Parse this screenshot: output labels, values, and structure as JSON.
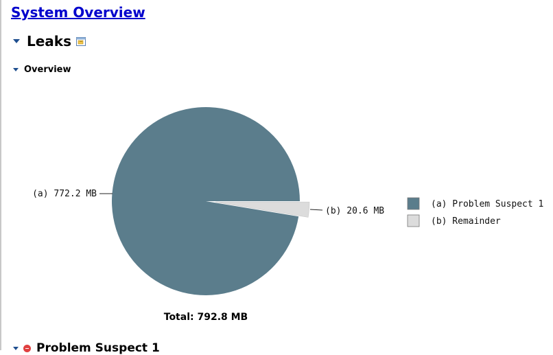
{
  "page": {
    "title": "System Overview"
  },
  "sections": {
    "leaks_label": "Leaks",
    "overview_label": "Overview",
    "next_label": "Problem Suspect 1"
  },
  "icons": {
    "section_toggle": "chevron-down-icon",
    "details": "details-icon",
    "error": "error-icon"
  },
  "chart_data": {
    "type": "pie",
    "unit": "MB",
    "slices": [
      {
        "key": "(a)",
        "name": "Problem Suspect 1",
        "value": 772.2,
        "label": "(a)  772.2 MB",
        "color": "#5b7d8c"
      },
      {
        "key": "(b)",
        "name": "Remainder",
        "value": 20.6,
        "label": "(b)  20.6 MB",
        "color": "#dcdcdc",
        "exploded": true
      }
    ],
    "total_label": "Total:  792.8 MB",
    "legend": [
      {
        "text": "(a)  Problem Suspect 1",
        "color": "#5b7d8c"
      },
      {
        "text": "(b)  Remainder",
        "color": "#dcdcdc"
      }
    ],
    "legend_placement": "right"
  }
}
